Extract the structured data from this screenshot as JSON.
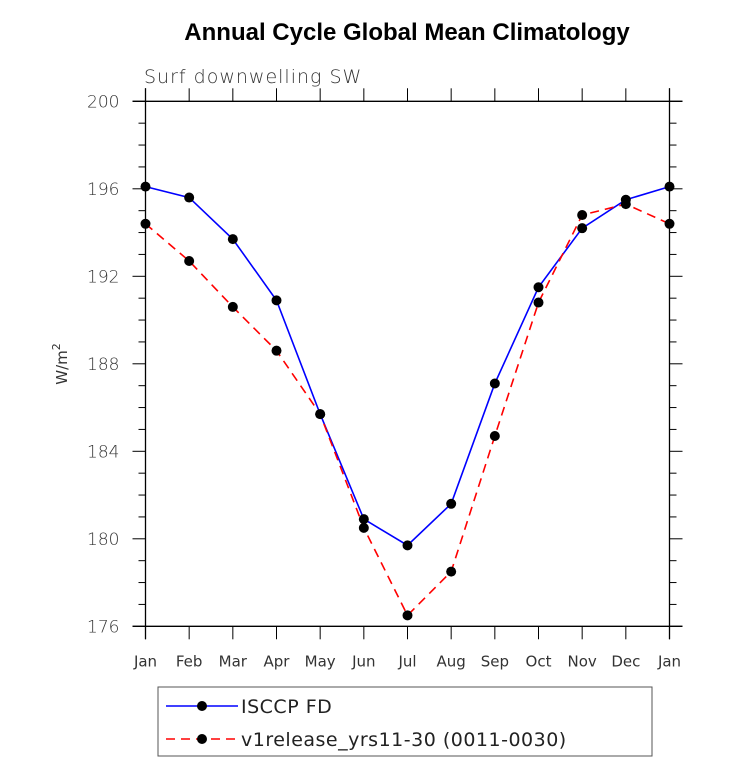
{
  "chart_data": {
    "type": "line",
    "title": "Annual Cycle Global Mean Climatology",
    "subtitle": "Surf downwelling SW",
    "xlabel": "",
    "ylabel": "W/m",
    "ylabel_superscript": "2",
    "x": [
      "Jan",
      "Feb",
      "Mar",
      "Apr",
      "May",
      "Jun",
      "Jul",
      "Aug",
      "Sep",
      "Oct",
      "Nov",
      "Dec",
      "Jan"
    ],
    "ylim": [
      176,
      200
    ],
    "yticks": [
      176,
      180,
      184,
      188,
      192,
      196,
      200
    ],
    "yminor_step": 1,
    "grid": false,
    "legend_position": "bottom",
    "series": [
      {
        "name": "ISCCP FD",
        "color": "#0000ff",
        "line_style": "solid",
        "marker": "filled-circle",
        "marker_color": "#000000",
        "values": [
          196.1,
          195.6,
          193.7,
          190.9,
          185.7,
          180.9,
          179.7,
          181.6,
          187.1,
          191.5,
          194.2,
          195.5,
          196.1
        ]
      },
      {
        "name": "v1release_yrs11-30 (0011-0030)",
        "color": "#ff0000",
        "line_style": "dashed",
        "marker": "filled-circle",
        "marker_color": "#000000",
        "values": [
          194.4,
          192.7,
          190.6,
          188.6,
          185.7,
          180.5,
          176.5,
          178.5,
          184.7,
          190.8,
          194.8,
          195.3,
          194.4
        ]
      }
    ]
  }
}
